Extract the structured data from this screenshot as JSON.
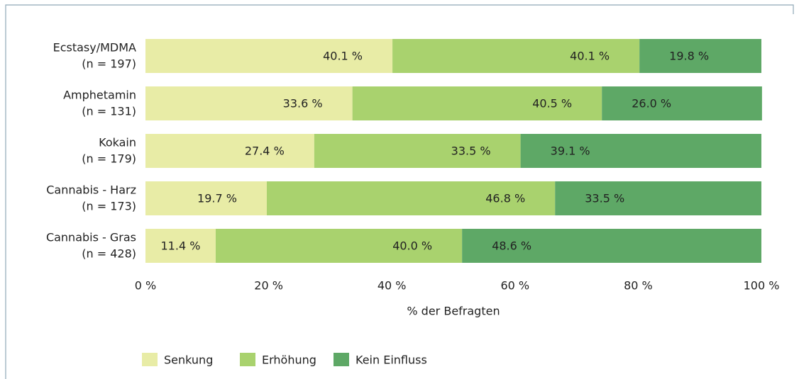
{
  "chart_data": {
    "type": "stacked-barh",
    "categories": [
      "Ecstasy/MDMA",
      "Amphetamin",
      "Kokain",
      "Cannabis - Harz",
      "Cannabis - Gras"
    ],
    "category_notes": [
      "(n = 197)",
      "(n = 131)",
      "(n = 179)",
      "(n = 173)",
      "(n = 428)"
    ],
    "series": [
      {
        "name": "Senkung",
        "color": "#e8eca6",
        "values": [
          40.1,
          33.6,
          27.4,
          19.7,
          11.4
        ],
        "value_labels": [
          "40.1 %",
          "33.6 %",
          "27.4 %",
          "19.7 %",
          "11.4 %"
        ]
      },
      {
        "name": "Erhöhung",
        "color": "#a9d26e",
        "values": [
          40.1,
          40.5,
          33.5,
          46.8,
          40.0
        ],
        "value_labels": [
          "40.1 %",
          "40.5 %",
          "33.5 %",
          "46.8 %",
          "40.0 %"
        ]
      },
      {
        "name": "Kein Einfluss",
        "color": "#5ea866",
        "values": [
          19.8,
          26.0,
          39.1,
          33.5,
          48.6
        ],
        "value_labels": [
          "19.8 %",
          "26.0 %",
          "39.1 %",
          "33.5 %",
          "48.6 %"
        ]
      }
    ],
    "xlim": [
      0,
      100
    ],
    "xticks": [
      {
        "value": 0,
        "label": "0 %"
      },
      {
        "value": 20,
        "label": "20 %"
      },
      {
        "value": 40,
        "label": "40 %"
      },
      {
        "value": 60,
        "label": "60 %"
      },
      {
        "value": 80,
        "label": "80 %"
      },
      {
        "value": 100,
        "label": "100 %"
      }
    ],
    "xlabel": "% der Befragten",
    "legend": "bottom-left"
  }
}
